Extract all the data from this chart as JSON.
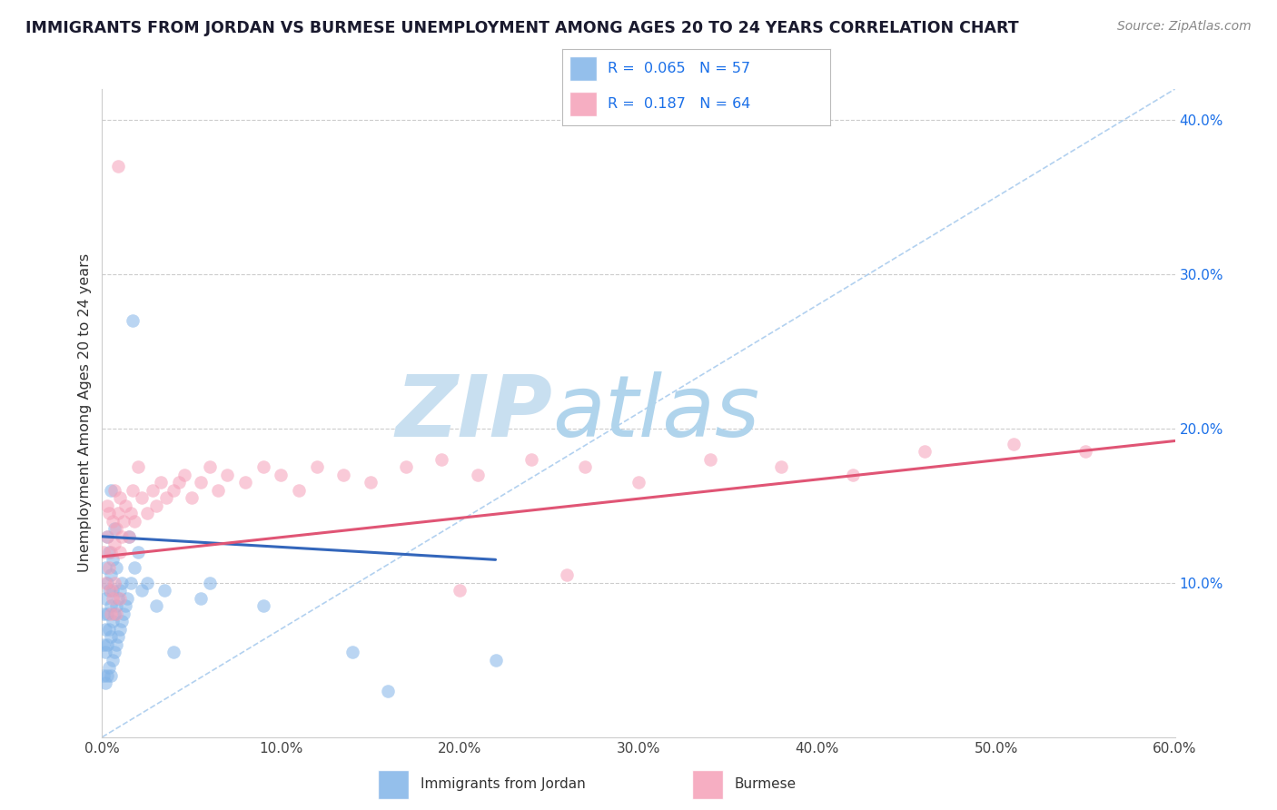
{
  "title": "IMMIGRANTS FROM JORDAN VS BURMESE UNEMPLOYMENT AMONG AGES 20 TO 24 YEARS CORRELATION CHART",
  "source_text": "Source: ZipAtlas.com",
  "ylabel": "Unemployment Among Ages 20 to 24 years",
  "xlim": [
    0.0,
    0.6
  ],
  "ylim": [
    0.0,
    0.42
  ],
  "xticks": [
    0.0,
    0.1,
    0.2,
    0.3,
    0.4,
    0.5,
    0.6
  ],
  "xtick_labels": [
    "0.0%",
    "10.0%",
    "20.0%",
    "30.0%",
    "40.0%",
    "50.0%",
    "60.0%"
  ],
  "yticks_right": [
    0.1,
    0.2,
    0.3,
    0.4
  ],
  "ytick_labels_right": [
    "10.0%",
    "20.0%",
    "30.0%",
    "40.0%"
  ],
  "series1_name": "Immigrants from Jordan",
  "series1_color": "#82b4e8",
  "series1_edge_color": "#5a9ad4",
  "series1_R": 0.065,
  "series1_N": 57,
  "series2_name": "Burmese",
  "series2_color": "#f5a0b8",
  "series2_edge_color": "#e07090",
  "series2_R": 0.187,
  "series2_N": 64,
  "legend_color": "#1a6fe8",
  "background_color": "#ffffff",
  "watermark_line1": "ZIP",
  "watermark_line2": "atlas",
  "watermark_color": "#cde4f5",
  "grid_color": "#cccccc",
  "series1_x": [
    0.001,
    0.001,
    0.001,
    0.002,
    0.002,
    0.002,
    0.002,
    0.002,
    0.003,
    0.003,
    0.003,
    0.003,
    0.003,
    0.004,
    0.004,
    0.004,
    0.004,
    0.005,
    0.005,
    0.005,
    0.005,
    0.005,
    0.006,
    0.006,
    0.006,
    0.006,
    0.007,
    0.007,
    0.007,
    0.008,
    0.008,
    0.008,
    0.009,
    0.009,
    0.01,
    0.01,
    0.011,
    0.011,
    0.012,
    0.013,
    0.014,
    0.015,
    0.016,
    0.017,
    0.018,
    0.02,
    0.022,
    0.025,
    0.03,
    0.035,
    0.04,
    0.055,
    0.06,
    0.09,
    0.14,
    0.16,
    0.22
  ],
  "series1_y": [
    0.04,
    0.06,
    0.08,
    0.035,
    0.055,
    0.07,
    0.09,
    0.11,
    0.04,
    0.06,
    0.08,
    0.1,
    0.13,
    0.045,
    0.07,
    0.095,
    0.12,
    0.04,
    0.065,
    0.085,
    0.105,
    0.16,
    0.05,
    0.075,
    0.095,
    0.115,
    0.055,
    0.08,
    0.135,
    0.06,
    0.085,
    0.11,
    0.065,
    0.09,
    0.07,
    0.095,
    0.075,
    0.1,
    0.08,
    0.085,
    0.09,
    0.13,
    0.1,
    0.27,
    0.11,
    0.12,
    0.095,
    0.1,
    0.085,
    0.095,
    0.055,
    0.09,
    0.1,
    0.085,
    0.055,
    0.03,
    0.05
  ],
  "series2_x": [
    0.001,
    0.002,
    0.003,
    0.003,
    0.004,
    0.004,
    0.005,
    0.005,
    0.006,
    0.007,
    0.007,
    0.008,
    0.009,
    0.01,
    0.01,
    0.011,
    0.012,
    0.013,
    0.015,
    0.016,
    0.017,
    0.018,
    0.02,
    0.022,
    0.025,
    0.028,
    0.03,
    0.033,
    0.036,
    0.04,
    0.043,
    0.046,
    0.05,
    0.055,
    0.06,
    0.065,
    0.07,
    0.08,
    0.09,
    0.1,
    0.11,
    0.12,
    0.135,
    0.15,
    0.17,
    0.19,
    0.21,
    0.24,
    0.27,
    0.3,
    0.34,
    0.38,
    0.42,
    0.46,
    0.51,
    0.55,
    0.005,
    0.006,
    0.007,
    0.008,
    0.009,
    0.01,
    0.2,
    0.26
  ],
  "series2_y": [
    0.12,
    0.1,
    0.13,
    0.15,
    0.11,
    0.145,
    0.12,
    0.095,
    0.14,
    0.125,
    0.16,
    0.135,
    0.145,
    0.12,
    0.155,
    0.13,
    0.14,
    0.15,
    0.13,
    0.145,
    0.16,
    0.14,
    0.175,
    0.155,
    0.145,
    0.16,
    0.15,
    0.165,
    0.155,
    0.16,
    0.165,
    0.17,
    0.155,
    0.165,
    0.175,
    0.16,
    0.17,
    0.165,
    0.175,
    0.17,
    0.16,
    0.175,
    0.17,
    0.165,
    0.175,
    0.18,
    0.17,
    0.18,
    0.175,
    0.165,
    0.18,
    0.175,
    0.17,
    0.185,
    0.19,
    0.185,
    0.08,
    0.09,
    0.1,
    0.08,
    0.37,
    0.09,
    0.095,
    0.105
  ],
  "ref_line_x": [
    0.0,
    0.6
  ],
  "ref_line_y": [
    0.0,
    0.42
  ],
  "trend1_x": [
    0.0,
    0.22
  ],
  "trend1_y": [
    0.13,
    0.115
  ],
  "trend2_x": [
    0.0,
    0.6
  ],
  "trend2_y": [
    0.117,
    0.192
  ]
}
